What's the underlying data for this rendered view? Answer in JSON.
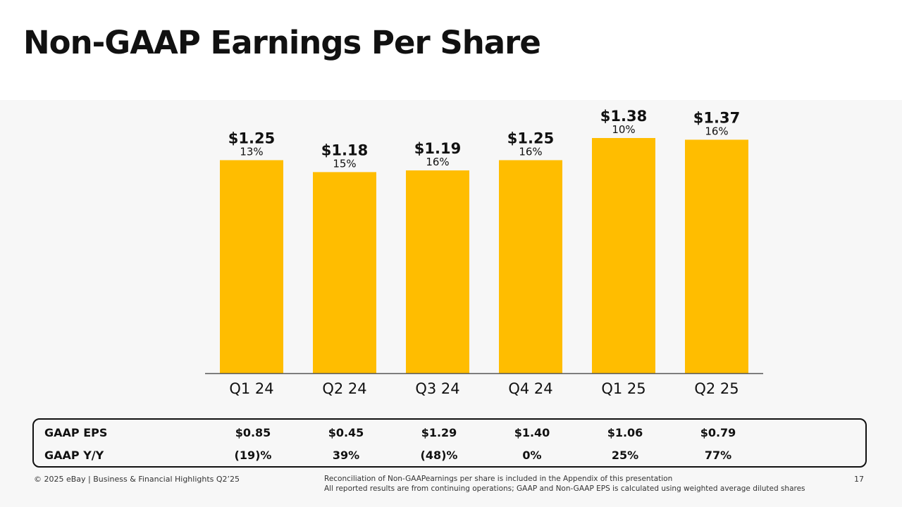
{
  "title": "Non-GAAP Earnings Per Share",
  "colors": {
    "bar": "#ffbd00",
    "axis": "#555555",
    "text": "#111111"
  },
  "chart_data": {
    "type": "bar",
    "title": "",
    "categories": [
      "Q1 24",
      "Q2 24",
      "Q3 24",
      "Q4 24",
      "Q1 25",
      "Q2 25"
    ],
    "values": [
      1.25,
      1.18,
      1.19,
      1.25,
      1.38,
      1.37
    ],
    "value_labels": [
      "$1.25",
      "$1.18",
      "$1.19",
      "$1.25",
      "$1.38",
      "$1.37"
    ],
    "growth_labels": [
      "13%",
      "15%",
      "16%",
      "16%",
      "10%",
      "16%"
    ],
    "xlabel": "",
    "ylabel": "",
    "ylim": [
      0,
      1.38
    ],
    "grid": false
  },
  "gaap": {
    "rows": [
      {
        "label": "GAAP EPS",
        "values": [
          "$0.85",
          "$0.45",
          "$1.29",
          "$1.40",
          "$1.06",
          "$0.79"
        ]
      },
      {
        "label": "GAAP Y/Y",
        "values": [
          "(19)%",
          "39%",
          "(48)%",
          "0%",
          "25%",
          "77%"
        ]
      }
    ]
  },
  "footer": {
    "left": "© 2025 eBay | Business & Financial Highlights Q2’25",
    "note1": "Reconciliation of Non-GAAPearnings per share is included in the Appendix of this presentation",
    "note2": "All reported results are from continuing operations; GAAP and Non-GAAP EPS is calculated using weighted average diluted shares",
    "page": "17"
  }
}
